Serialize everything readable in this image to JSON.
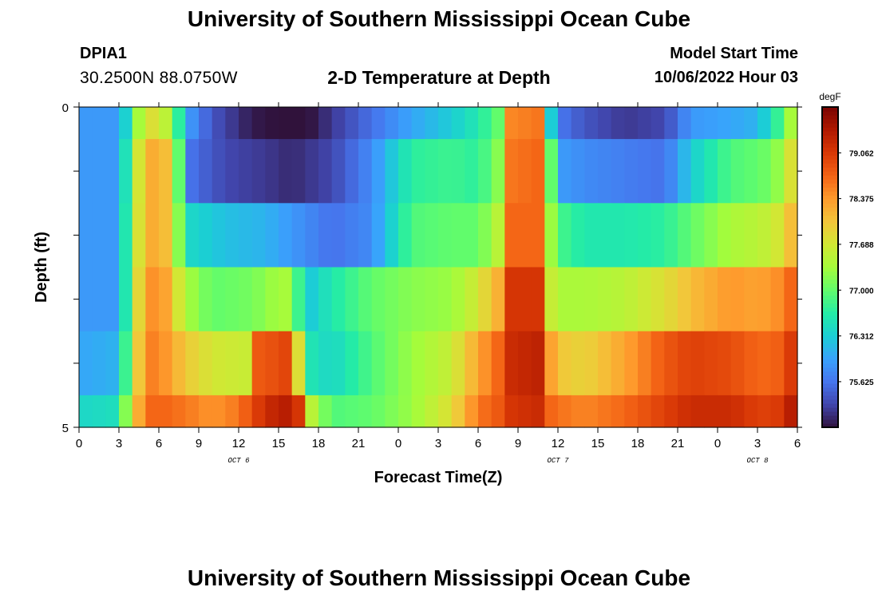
{
  "header": {
    "title": "University of Southern Mississippi Ocean Cube",
    "station": "DPIA1",
    "coords": "30.2500N  88.0750W",
    "subtitle": "2-D Temperature at Depth",
    "model_start_label": "Model Start Time",
    "model_start_value": "10/06/2022 Hour 03"
  },
  "footer": {
    "title": "University of Southern Mississippi Ocean Cube"
  },
  "colors": {
    "colormap": [
      "#30123b",
      "#4145ab",
      "#4675ed",
      "#39a2fc",
      "#1bcfd4",
      "#24eca6",
      "#61fc6c",
      "#a4fc3b",
      "#d1e834",
      "#f3c63a",
      "#fe9b2d",
      "#f36315",
      "#d93806",
      "#b11901",
      "#7a0402"
    ]
  },
  "chart_data": {
    "type": "heatmap",
    "xlabel": "Forecast Time(Z)",
    "ylabel": "Depth (ft)",
    "x_tick_labels": [
      "0",
      "3",
      "6",
      "9",
      "12",
      "15",
      "18",
      "21",
      "0",
      "3",
      "6",
      "9",
      "12",
      "15",
      "18",
      "21",
      "0",
      "3",
      "6"
    ],
    "date_labels": [
      {
        "text": "OCT 6",
        "hour": 12
      },
      {
        "text": "OCT 7",
        "hour": 36
      },
      {
        "text": "OCT 8",
        "hour": 51
      }
    ],
    "y_tick_labels": [
      "0",
      "5"
    ],
    "ylim": [
      0,
      5
    ],
    "x_range_hours": [
      0,
      54
    ],
    "colorbar": {
      "units": "degF",
      "labels": [
        "79.062",
        "78.375",
        "77.688",
        "77.000",
        "76.312",
        "75.625"
      ],
      "range": [
        74.94,
        79.75
      ]
    },
    "depth_layers": [
      0,
      1,
      2,
      3,
      4,
      5
    ],
    "profiles": [
      {
        "hours": [
          0,
          3,
          3.8,
          5,
          7,
          8,
          10,
          13,
          16,
          17,
          19,
          22,
          25,
          28,
          30,
          31.5,
          32.5,
          34.5,
          35.5,
          36.5,
          38,
          41,
          44,
          46,
          49,
          51,
          52,
          53,
          53.7,
          54
        ],
        "temps": [
          75.9,
          75.9,
          76.6,
          77.9,
          77.4,
          76.0,
          75.4,
          75.0,
          74.9,
          74.9,
          75.2,
          75.6,
          76.0,
          76.3,
          76.6,
          77.0,
          78.5,
          78.6,
          76.3,
          75.6,
          75.4,
          75.2,
          75.3,
          75.9,
          76.0,
          76.1,
          76.5,
          77.0,
          77.5,
          77.9
        ]
      },
      {
        "hours": [
          0,
          3,
          3.8,
          5,
          6.5,
          7.5,
          8.5,
          11,
          14,
          16,
          19,
          22,
          25,
          28,
          30,
          31.5,
          32.5,
          34.5,
          35.5,
          36.5,
          38,
          41,
          44,
          46,
          49,
          51,
          52,
          53,
          53.7,
          54
        ],
        "temps": [
          75.9,
          75.9,
          76.9,
          78.3,
          78.1,
          77.0,
          75.6,
          75.3,
          75.2,
          75.1,
          75.3,
          75.8,
          76.7,
          76.8,
          76.7,
          77.2,
          78.6,
          78.7,
          77.0,
          75.9,
          75.8,
          75.7,
          75.6,
          76.3,
          76.9,
          77.0,
          77.1,
          77.4,
          77.9,
          78.3
        ]
      },
      {
        "hours": [
          0,
          3,
          3.8,
          5,
          6.5,
          7.5,
          8.5,
          11,
          14,
          16,
          19,
          22,
          25,
          28,
          30,
          31.5,
          32.5,
          34.5,
          35.5,
          36.5,
          38,
          41,
          44,
          46,
          49,
          51,
          52,
          53,
          53.7,
          54
        ],
        "temps": [
          75.9,
          75.9,
          77.0,
          78.3,
          78.1,
          77.2,
          76.4,
          76.2,
          76.1,
          75.9,
          75.6,
          75.8,
          76.9,
          77.0,
          77.0,
          77.5,
          78.7,
          78.7,
          77.3,
          76.8,
          76.6,
          76.6,
          76.7,
          77.0,
          77.4,
          77.5,
          77.6,
          77.8,
          78.2,
          78.5
        ]
      },
      {
        "hours": [
          0,
          3,
          3.8,
          5,
          6.5,
          8,
          10,
          13,
          14.5,
          16,
          17,
          19,
          22,
          25,
          28,
          30,
          31.5,
          32.5,
          34.5,
          35.5,
          36.5,
          38,
          41,
          44,
          46,
          49,
          51,
          52,
          53,
          54
        ],
        "temps": [
          75.9,
          75.9,
          77.0,
          78.5,
          78.3,
          77.4,
          77.0,
          77.1,
          77.3,
          77.4,
          76.2,
          76.6,
          77.0,
          77.2,
          77.3,
          77.7,
          78.2,
          79.1,
          79.1,
          77.6,
          77.4,
          77.4,
          77.5,
          77.8,
          78.1,
          78.4,
          78.3,
          78.4,
          78.5,
          78.9
        ]
      },
      {
        "hours": [
          0,
          3,
          3.8,
          5,
          6.5,
          8,
          10,
          13,
          13.5,
          15,
          16,
          17,
          19,
          22,
          25,
          28,
          30,
          31.5,
          32.5,
          34.5,
          35.5,
          36.5,
          38,
          41,
          44,
          46,
          49,
          51,
          52,
          53,
          54
        ],
        "temps": [
          76.0,
          76.1,
          77.2,
          78.6,
          78.4,
          78.0,
          77.7,
          77.6,
          78.8,
          78.9,
          79.0,
          76.6,
          76.4,
          76.9,
          77.3,
          77.6,
          78.3,
          78.7,
          79.2,
          79.3,
          78.3,
          78.0,
          77.9,
          78.3,
          78.8,
          79.0,
          78.9,
          78.7,
          78.7,
          78.8,
          79.3
        ]
      },
      {
        "hours": [
          0,
          3,
          3.8,
          5,
          6.5,
          8,
          10,
          12,
          14,
          16,
          16.5,
          17.5,
          19,
          22,
          25,
          28,
          30,
          31.5,
          32.5,
          34.5,
          35.5,
          36.5,
          38,
          41,
          44,
          46,
          49,
          51,
          52,
          53,
          54
        ],
        "temps": [
          76.4,
          76.5,
          77.6,
          78.7,
          78.7,
          78.6,
          78.4,
          78.6,
          79.2,
          79.4,
          79.1,
          77.5,
          76.9,
          77.0,
          77.3,
          77.8,
          78.6,
          78.8,
          79.1,
          79.2,
          78.7,
          78.6,
          78.5,
          78.7,
          79.0,
          79.2,
          79.2,
          79.0,
          79.0,
          79.1,
          79.6
        ]
      }
    ]
  }
}
